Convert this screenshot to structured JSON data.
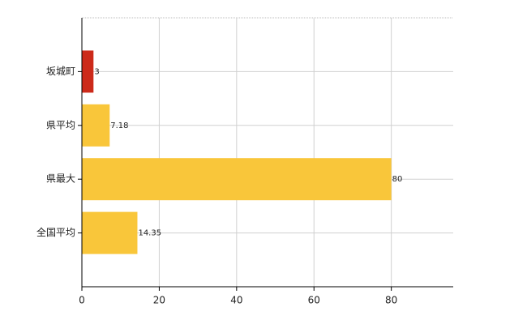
{
  "chart_data": {
    "type": "bar",
    "orientation": "horizontal",
    "categories": [
      "坂城町",
      "県平均",
      "県最大",
      "全国平均"
    ],
    "values": [
      3,
      7.18,
      80,
      14.35
    ],
    "colors": [
      "#cc2a1a",
      "#f9c63a",
      "#f9c63a",
      "#f9c63a"
    ],
    "xlim": [
      0,
      96
    ],
    "xticks": [
      0,
      20,
      40,
      60,
      80
    ],
    "grid": true
  }
}
